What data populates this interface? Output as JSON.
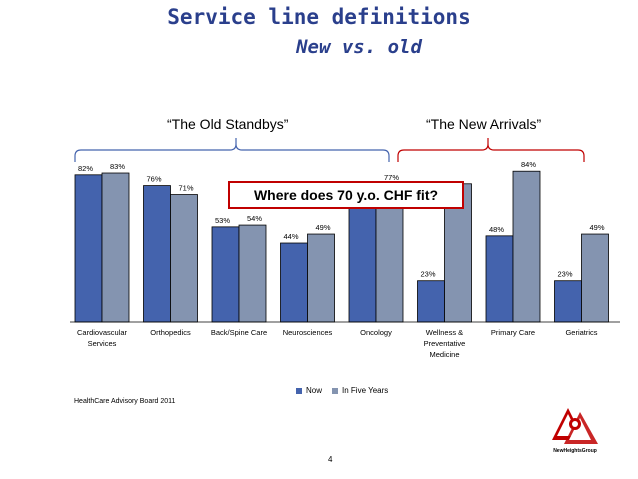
{
  "slide": {
    "title": "Service line definitions",
    "subtitle": "New vs. old",
    "brace_old": "“The Old Standbys”",
    "brace_new": "“The New Arrivals”",
    "callout": "Where does 70 y.o. CHF fit?",
    "source": "HealthCare Advisory Board 2011",
    "page_number": "4",
    "logo_text": "NewHeightsGroup"
  },
  "colors": {
    "now": "#4463ad",
    "future": "#8494b0",
    "accent": "#c00000",
    "title": "#2a3f8c"
  },
  "chart_data": {
    "type": "bar",
    "categories": [
      "Cardiovascular Services",
      "Orthopedics",
      "Back/Spine Care",
      "Neurosciences",
      "Oncology",
      "Wellness & Preventative Medicine",
      "Primary Care",
      "Geriatrics"
    ],
    "category_lines": [
      [
        "Cardiovascular",
        "Services"
      ],
      [
        "Orthopedics"
      ],
      [
        "Back/Spine Care"
      ],
      [
        "Neurosciences"
      ],
      [
        "Oncology"
      ],
      [
        "Wellness &",
        "Preventative",
        "Medicine"
      ],
      [
        "Primary Care"
      ],
      [
        "Geriatrics"
      ]
    ],
    "series": [
      {
        "name": "Now",
        "values": [
          82,
          76,
          53,
          44,
          77,
          23,
          48,
          23
        ],
        "labels": [
          "82%",
          "76%",
          "53%",
          "44%",
          "",
          "23%",
          "48%",
          "23%"
        ]
      },
      {
        "name": "In Five Years",
        "values": [
          83,
          71,
          54,
          49,
          77,
          77,
          84,
          49
        ],
        "labels": [
          "83%",
          "71%",
          "54%",
          "49%",
          "77%",
          "",
          "84%",
          "49%"
        ]
      }
    ],
    "ylim": [
      0,
      100
    ],
    "legend_position": "bottom"
  }
}
